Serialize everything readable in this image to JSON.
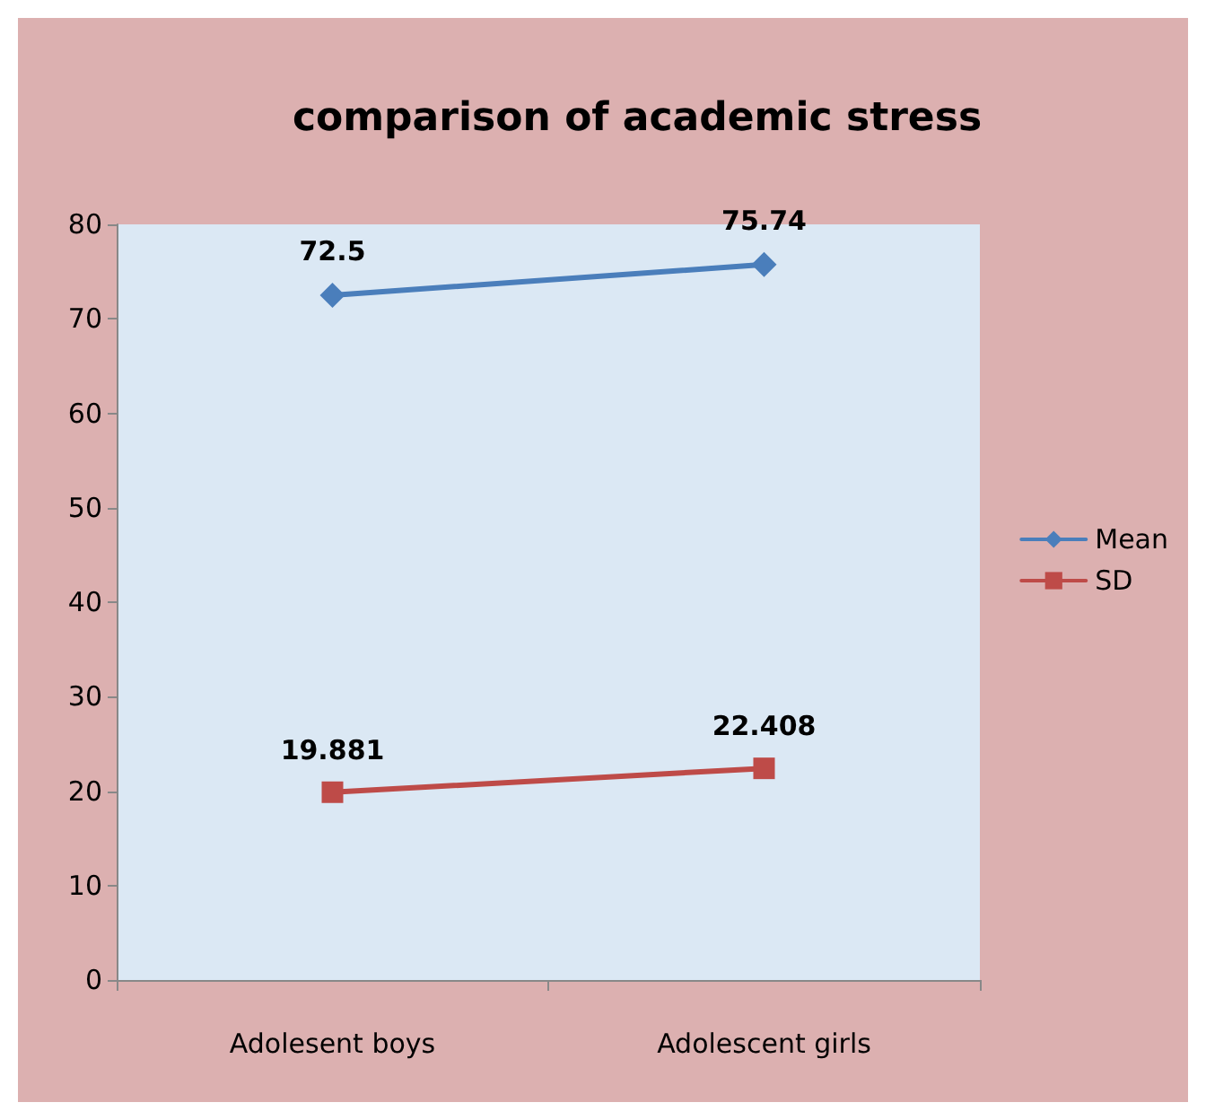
{
  "chart_data": {
    "type": "line",
    "title": "comparison of academic stress",
    "categories": [
      "Adolesent boys",
      "Adolescent girls"
    ],
    "series": [
      {
        "name": "Mean",
        "color": "#4a7ebb",
        "values": [
          72.5,
          75.74
        ],
        "marker": "diamond"
      },
      {
        "name": "SD",
        "color": "#be4b48",
        "values": [
          19.881,
          22.408
        ],
        "marker": "square"
      }
    ],
    "ylim": [
      0,
      80
    ],
    "yticks": [
      0,
      10,
      20,
      30,
      40,
      50,
      60,
      70,
      80
    ],
    "grid": false,
    "legend": "right",
    "data_labels": true,
    "line_style": "solid"
  }
}
